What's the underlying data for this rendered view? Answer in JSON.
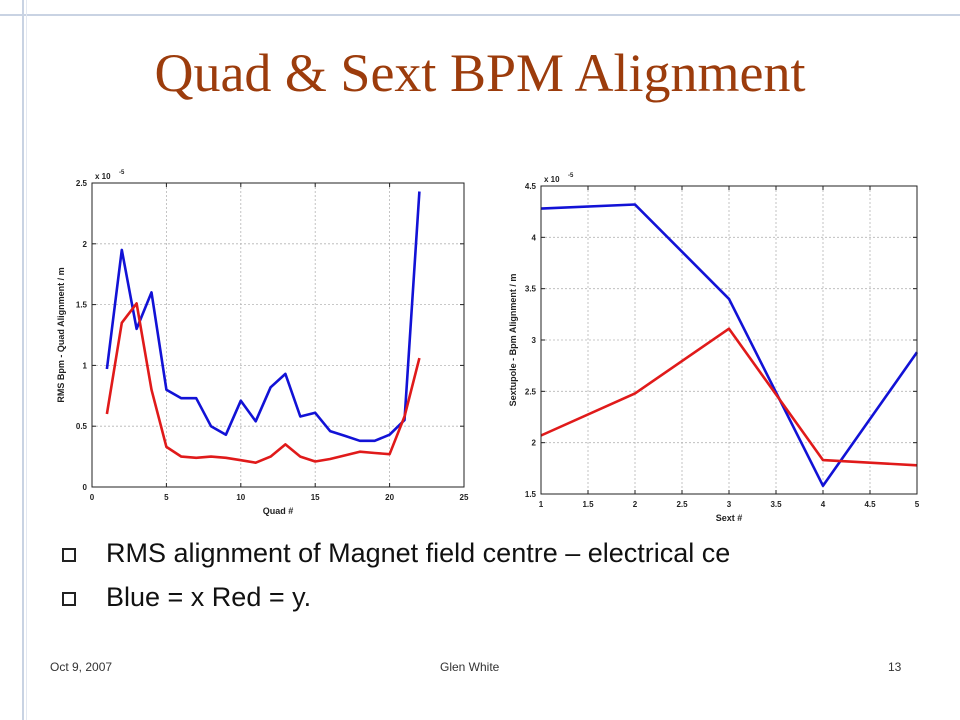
{
  "slide": {
    "title": "Quad & Sext BPM Alignment",
    "bullets": [
      "RMS alignment of Magnet field centre – electrical ce",
      "Blue = x Red = y."
    ],
    "footer": {
      "date": "Oct 9, 2007",
      "author": "Glen White",
      "page": "13"
    }
  },
  "colors": {
    "title": "#9c3c0c",
    "x_series": "#1212d6",
    "y_series": "#e01a1a"
  },
  "chart_data": [
    {
      "type": "line",
      "xlabel": "Quad #",
      "ylabel": "RMS Bpm - Quad Alignment / m",
      "multiplier": "x 10",
      "multiplier_exp": "-5",
      "xlim": [
        0,
        25
      ],
      "ylim": [
        0,
        2.5
      ],
      "xticks": [
        0,
        5,
        10,
        15,
        20,
        25
      ],
      "yticks": [
        0,
        0.5,
        1,
        1.5,
        2,
        2.5
      ],
      "xtick_labels": [
        "0",
        "5",
        "10",
        "15",
        "20",
        "25"
      ],
      "ytick_labels": [
        "0",
        "0.5",
        "1",
        "1.5",
        "2",
        "2.5"
      ],
      "grid": true,
      "x": [
        1,
        2,
        3,
        4,
        5,
        6,
        7,
        8,
        9,
        10,
        11,
        12,
        13,
        14,
        15,
        16,
        17,
        18,
        19,
        20,
        21,
        22
      ],
      "series": [
        {
          "color": "#1212d6",
          "values": [
            0.97,
            1.95,
            1.3,
            1.6,
            0.8,
            0.73,
            0.73,
            0.5,
            0.43,
            0.71,
            0.54,
            0.82,
            0.93,
            0.58,
            0.61,
            0.46,
            0.42,
            0.38,
            0.38,
            0.43,
            0.55,
            2.43
          ]
        },
        {
          "color": "#e01a1a",
          "values": [
            0.6,
            1.35,
            1.51,
            0.8,
            0.33,
            0.25,
            0.24,
            0.25,
            0.24,
            0.22,
            0.2,
            0.25,
            0.35,
            0.25,
            0.21,
            0.23,
            0.26,
            0.29,
            0.28,
            0.27,
            0.58,
            1.06
          ]
        }
      ]
    },
    {
      "type": "line",
      "xlabel": "Sext #",
      "ylabel": "Sextupole - Bpm Alignment / m",
      "multiplier": "x 10",
      "multiplier_exp": "-5",
      "xlim": [
        1,
        5
      ],
      "ylim": [
        1.5,
        4.5
      ],
      "xticks": [
        1,
        1.5,
        2,
        2.5,
        3,
        3.5,
        4,
        4.5,
        5
      ],
      "yticks": [
        1.5,
        2,
        2.5,
        3,
        3.5,
        4,
        4.5
      ],
      "xtick_labels": [
        "1",
        "1.5",
        "2",
        "2.5",
        "3",
        "3.5",
        "4",
        "4.5",
        "5"
      ],
      "ytick_labels": [
        "1.5",
        "2",
        "2.5",
        "3",
        "3.5",
        "4",
        "4.5"
      ],
      "grid": true,
      "x": [
        1,
        2,
        3,
        4,
        5
      ],
      "series": [
        {
          "color": "#1212d6",
          "values": [
            4.28,
            4.32,
            3.4,
            1.58,
            2.88
          ]
        },
        {
          "color": "#e01a1a",
          "values": [
            2.07,
            2.48,
            3.11,
            1.83,
            1.78
          ]
        }
      ]
    }
  ]
}
